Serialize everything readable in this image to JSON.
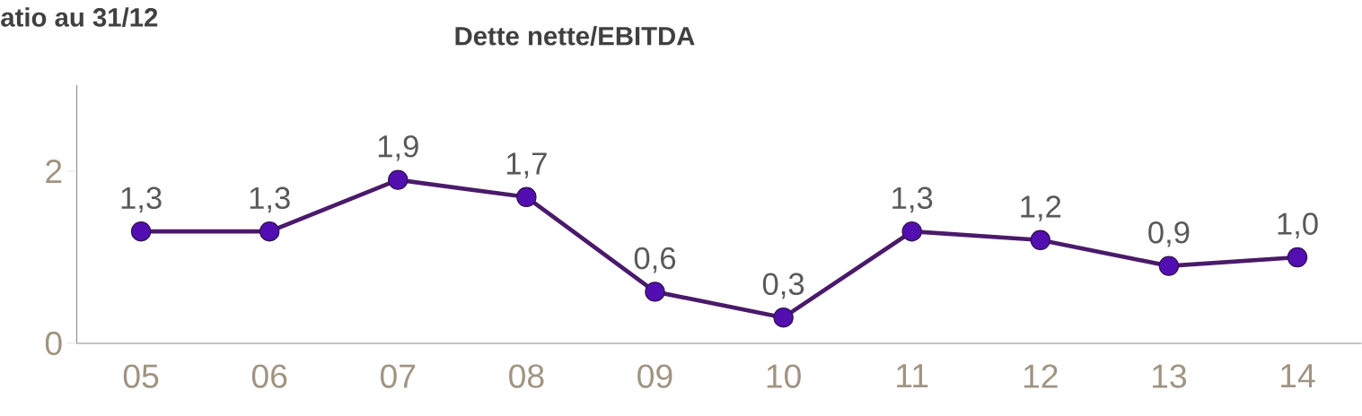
{
  "chart_data": {
    "type": "line",
    "title": "Dette nette/EBITDA",
    "subtitle": "atio au 31/12",
    "categories": [
      "05",
      "06",
      "07",
      "08",
      "09",
      "10",
      "11",
      "12",
      "13",
      "14"
    ],
    "values": [
      1.3,
      1.3,
      1.9,
      1.7,
      0.6,
      0.3,
      1.3,
      1.2,
      0.9,
      1.0
    ],
    "value_labels": [
      "1,3",
      "1,3",
      "1,9",
      "1,7",
      "0,6",
      "0,3",
      "1,3",
      "1,2",
      "0,9",
      "1,0"
    ],
    "color": "#4a1a6a",
    "marker": "circle",
    "line_style": "solid",
    "ylim": [
      0,
      3
    ],
    "yticks": [
      0,
      2
    ],
    "grid": false
  }
}
